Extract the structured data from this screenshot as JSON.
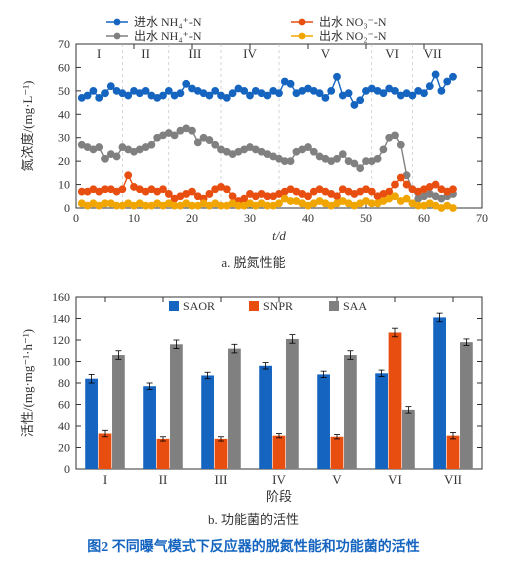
{
  "figure_caption": "图2  不同曝气模式下反应器的脱氮性能和功能菌的活性",
  "chartA": {
    "type": "line-scatter",
    "subtitle": "a. 脱氮性能",
    "xlabel": "t/d",
    "ylabel": "氮浓度/(mg·L⁻¹)",
    "xlim": [
      0,
      70
    ],
    "ylim": [
      0,
      70
    ],
    "xtick_step": 10,
    "ytick_step": 10,
    "background_color": "#ffffff",
    "axis_color": "#333333",
    "tick_inside": true,
    "marker_size": 3.4,
    "line_width": 1.4,
    "legend": [
      {
        "key": "in_nh4",
        "label": "进水 NH₄⁺-N",
        "color": "#1565c0"
      },
      {
        "key": "out_no3",
        "label": "出水 NO₃⁻-N",
        "color": "#e84e10"
      },
      {
        "key": "out_nh4",
        "label": "出水 NH₄⁺-N",
        "color": "#808080"
      },
      {
        "key": "out_no2",
        "label": "出水 NO₂⁻-N",
        "color": "#f0a500"
      }
    ],
    "phase_lines_x": [
      8,
      16,
      25,
      35,
      51,
      58
    ],
    "phase_labels": [
      "I",
      "II",
      "III",
      "IV",
      "V",
      "VI",
      "VII"
    ],
    "series": {
      "in_nh4": {
        "color": "#1565c0",
        "x": [
          1,
          2,
          3,
          4,
          5,
          6,
          7,
          8,
          9,
          10,
          11,
          12,
          13,
          14,
          15,
          16,
          17,
          18,
          19,
          20,
          21,
          22,
          23,
          24,
          25,
          26,
          27,
          28,
          29,
          30,
          31,
          32,
          33,
          34,
          35,
          36,
          37,
          38,
          39,
          40,
          41,
          42,
          43,
          44,
          45,
          46,
          47,
          48,
          49,
          50,
          51,
          52,
          53,
          54,
          55,
          56,
          57,
          58,
          59,
          60,
          61,
          62,
          63,
          64,
          65
        ],
        "y": [
          47,
          48,
          50,
          47,
          49,
          52,
          50,
          49,
          48,
          50,
          49,
          50,
          48,
          47,
          48,
          50,
          48,
          49,
          53,
          51,
          50,
          49,
          48,
          50,
          48,
          47,
          49,
          51,
          50,
          48,
          50,
          49,
          48,
          50,
          49,
          54,
          53,
          49,
          50,
          51,
          50,
          49,
          47,
          50,
          56,
          48,
          49,
          44,
          46,
          50,
          51,
          50,
          49,
          51,
          50,
          48,
          49,
          48,
          50,
          49,
          52,
          57,
          50,
          54,
          56
        ]
      },
      "out_nh4": {
        "color": "#808080",
        "x": [
          1,
          2,
          3,
          4,
          5,
          6,
          7,
          8,
          9,
          10,
          11,
          12,
          13,
          14,
          15,
          16,
          17,
          18,
          19,
          20,
          21,
          22,
          23,
          24,
          25,
          26,
          27,
          28,
          29,
          30,
          31,
          32,
          33,
          34,
          35,
          36,
          37,
          38,
          39,
          40,
          41,
          42,
          43,
          44,
          45,
          46,
          47,
          48,
          49,
          50,
          51,
          52,
          53,
          54,
          55,
          56,
          57,
          58,
          59,
          60,
          61,
          62,
          63,
          64,
          65
        ],
        "y": [
          27,
          26,
          25,
          26,
          21,
          23,
          22,
          26,
          25,
          24,
          25,
          26,
          27,
          30,
          31,
          32,
          31,
          33,
          34,
          33,
          28,
          30,
          29,
          27,
          25,
          24,
          23,
          24,
          25,
          26,
          25,
          24,
          23,
          22,
          21,
          20,
          20,
          24,
          25,
          26,
          24,
          22,
          21,
          20,
          21,
          23,
          20,
          19,
          17,
          20,
          20,
          21,
          25,
          30,
          31,
          27,
          14,
          8,
          4,
          5,
          6,
          5,
          4,
          5,
          6
        ]
      },
      "out_no3": {
        "color": "#e84e10",
        "x": [
          1,
          2,
          3,
          4,
          5,
          6,
          7,
          8,
          9,
          10,
          11,
          12,
          13,
          14,
          15,
          16,
          17,
          18,
          19,
          20,
          21,
          22,
          23,
          24,
          25,
          26,
          27,
          28,
          29,
          30,
          31,
          32,
          33,
          34,
          35,
          36,
          37,
          38,
          39,
          40,
          41,
          42,
          43,
          44,
          45,
          46,
          47,
          48,
          49,
          50,
          51,
          52,
          53,
          54,
          55,
          56,
          57,
          58,
          59,
          60,
          61,
          62,
          63,
          64,
          65
        ],
        "y": [
          7,
          7,
          8,
          7,
          8,
          8,
          7,
          8,
          14,
          9,
          8,
          7,
          8,
          7,
          8,
          6,
          4,
          5,
          6,
          7,
          5,
          4,
          6,
          8,
          9,
          8,
          5,
          3,
          4,
          6,
          5,
          6,
          5,
          5,
          6,
          7,
          8,
          7,
          6,
          5,
          7,
          8,
          7,
          6,
          5,
          8,
          7,
          6,
          7,
          8,
          7,
          5,
          6,
          7,
          10,
          13,
          10,
          8,
          7,
          8,
          9,
          10,
          8,
          7,
          8
        ]
      },
      "out_no2": {
        "color": "#f0a500",
        "x": [
          1,
          2,
          3,
          4,
          5,
          6,
          7,
          8,
          9,
          10,
          11,
          12,
          13,
          14,
          15,
          16,
          17,
          18,
          19,
          20,
          21,
          22,
          23,
          24,
          25,
          26,
          27,
          28,
          29,
          30,
          31,
          32,
          33,
          34,
          35,
          36,
          37,
          38,
          39,
          40,
          41,
          42,
          43,
          44,
          45,
          46,
          47,
          48,
          49,
          50,
          51,
          52,
          53,
          54,
          55,
          56,
          57,
          58,
          59,
          60,
          61,
          62,
          63,
          64,
          65
        ],
        "y": [
          2,
          1,
          2,
          1,
          2,
          2,
          1,
          1,
          2,
          1,
          2,
          1,
          1,
          2,
          1,
          2,
          1,
          1,
          2,
          1,
          1,
          2,
          1,
          2,
          1,
          1,
          2,
          1,
          1,
          2,
          1,
          2,
          1,
          1,
          2,
          4,
          3,
          3,
          2,
          1,
          2,
          3,
          2,
          1,
          2,
          3,
          2,
          1,
          2,
          3,
          2,
          2,
          3,
          4,
          5,
          3,
          4,
          2,
          1,
          1,
          2,
          1,
          0,
          1,
          0
        ]
      }
    }
  },
  "chartB": {
    "type": "grouped-bar",
    "subtitle": "b. 功能菌的活性",
    "xlabel": "阶段",
    "ylabel": "活性/(mg·mg⁻¹·h⁻¹)",
    "ylim": [
      0,
      160
    ],
    "ytick_step": 20,
    "categories": [
      "I",
      "II",
      "III",
      "IV",
      "V",
      "VI",
      "VII"
    ],
    "groups": [
      {
        "key": "SAOR",
        "label": "SAOR",
        "color": "#1565c0",
        "values": [
          84,
          77,
          87,
          96,
          88,
          89,
          141
        ],
        "err": [
          4,
          3,
          3,
          3,
          3,
          3,
          4
        ]
      },
      {
        "key": "SNPR",
        "label": "SNPR",
        "color": "#e84e10",
        "values": [
          33,
          28,
          28,
          31,
          30,
          127,
          31
        ],
        "err": [
          3,
          2,
          2,
          2,
          2,
          4,
          3
        ]
      },
      {
        "key": "SAA",
        "label": "SAA",
        "color": "#808080",
        "values": [
          106,
          116,
          112,
          121,
          106,
          55,
          118
        ],
        "err": [
          4,
          4,
          4,
          4,
          4,
          3,
          3
        ]
      }
    ],
    "bar_width": 0.22,
    "group_gap": 0.34,
    "background_color": "#ffffff",
    "grid_color": "#cccccc",
    "border": true
  }
}
